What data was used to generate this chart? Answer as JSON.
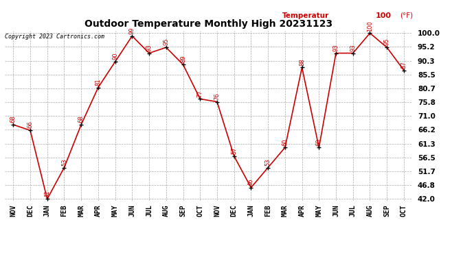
{
  "title": "Outdoor Temperature Monthly High 20231123",
  "copyright": "Copyright 2023 Cartronics.com",
  "legend_label": "Temperatur",
  "legend_unit": "100",
  "legend_unit2": "(°F)",
  "months": [
    "NOV",
    "DEC",
    "JAN",
    "FEB",
    "MAR",
    "APR",
    "MAY",
    "JUN",
    "JUL",
    "AUG",
    "SEP",
    "OCT",
    "NOV",
    "DEC",
    "JAN",
    "FEB",
    "MAR",
    "APR",
    "MAY",
    "JUN",
    "JUL",
    "AUG",
    "SEP",
    "OCT"
  ],
  "values": [
    68,
    66,
    42,
    53,
    68,
    81,
    90,
    99,
    93,
    95,
    89,
    77,
    76,
    57,
    46,
    53,
    60,
    88,
    60,
    93,
    93,
    100,
    95,
    87
  ],
  "yticks": [
    42.0,
    46.8,
    51.7,
    56.5,
    61.3,
    66.2,
    71.0,
    75.8,
    80.7,
    85.5,
    90.3,
    95.2,
    100.0
  ],
  "line_color": "#cc0000",
  "marker_color": "#000000",
  "label_color": "#cc0000",
  "title_color": "#000000",
  "copyright_color": "#000000",
  "legend_color": "#cc0000",
  "bg_color": "#ffffff",
  "grid_color": "#aaaaaa",
  "ymin": 42.0,
  "ymax": 100.0
}
